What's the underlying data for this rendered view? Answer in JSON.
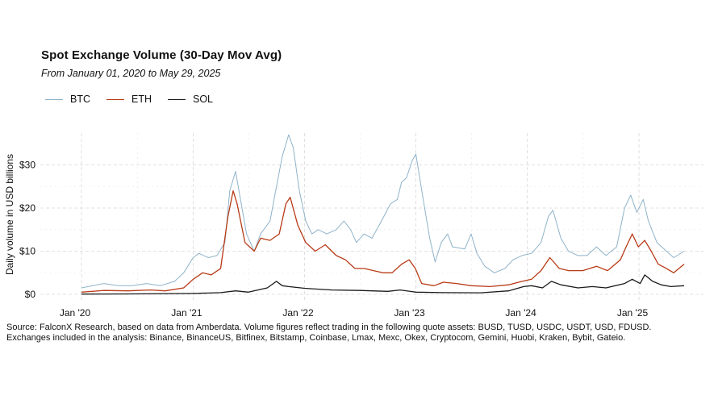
{
  "chart_data": {
    "type": "line",
    "title": "Spot Exchange Volume (30-Day Mov Avg)",
    "subtitle": "From January 01, 2020 to May 29, 2025",
    "ylabel": "Daily volume in USD billions",
    "xlabel": "",
    "x_range": [
      "2020-01-01",
      "2025-05-29"
    ],
    "ylim": [
      0,
      37
    ],
    "y_ticks": [
      0,
      10,
      20,
      30
    ],
    "y_tick_labels": [
      "$0",
      "$10",
      "$20",
      "$30"
    ],
    "x_ticks": [
      "2020-01-01",
      "2021-01-01",
      "2022-01-01",
      "2023-01-01",
      "2024-01-01",
      "2025-01-01"
    ],
    "x_tick_labels": [
      "Jan '20",
      "Jan '21",
      "Jan '22",
      "Jan '23",
      "Jan '24",
      "Jan '25"
    ],
    "grid": true,
    "legend_position": "top-left",
    "series": [
      {
        "name": "BTC",
        "color": "#8fb3c9",
        "points": [
          [
            "2020-01-01",
            1.5
          ],
          [
            "2020-03-15",
            2.5
          ],
          [
            "2020-05-01",
            2.0
          ],
          [
            "2020-06-15",
            2.0
          ],
          [
            "2020-08-01",
            2.5
          ],
          [
            "2020-09-15",
            2.0
          ],
          [
            "2020-11-01",
            3.0
          ],
          [
            "2020-12-01",
            5.0
          ],
          [
            "2021-01-01",
            8.5
          ],
          [
            "2021-01-20",
            9.5
          ],
          [
            "2021-02-20",
            8.5
          ],
          [
            "2021-03-20",
            9.0
          ],
          [
            "2021-04-15",
            12.0
          ],
          [
            "2021-05-01",
            24.0
          ],
          [
            "2021-05-20",
            28.5
          ],
          [
            "2021-06-05",
            22.0
          ],
          [
            "2021-06-25",
            14.0
          ],
          [
            "2021-07-20",
            10.0
          ],
          [
            "2021-08-10",
            14.0
          ],
          [
            "2021-09-10",
            17.0
          ],
          [
            "2021-10-01",
            25.0
          ],
          [
            "2021-10-20",
            32.0
          ],
          [
            "2021-11-10",
            37.0
          ],
          [
            "2021-11-25",
            34.0
          ],
          [
            "2021-12-15",
            24.0
          ],
          [
            "2022-01-05",
            17.0
          ],
          [
            "2022-01-25",
            14.0
          ],
          [
            "2022-02-15",
            15.0
          ],
          [
            "2022-03-15",
            14.0
          ],
          [
            "2022-04-15",
            15.0
          ],
          [
            "2022-05-10",
            17.0
          ],
          [
            "2022-06-01",
            15.0
          ],
          [
            "2022-06-20",
            12.0
          ],
          [
            "2022-07-15",
            14.0
          ],
          [
            "2022-08-10",
            13.0
          ],
          [
            "2022-09-10",
            17.0
          ],
          [
            "2022-10-10",
            21.0
          ],
          [
            "2022-11-01",
            22.0
          ],
          [
            "2022-11-15",
            26.0
          ],
          [
            "2022-12-01",
            27.0
          ],
          [
            "2022-12-20",
            31.0
          ],
          [
            "2023-01-01",
            32.5
          ],
          [
            "2023-01-25",
            22.0
          ],
          [
            "2023-02-15",
            13.0
          ],
          [
            "2023-03-05",
            7.5
          ],
          [
            "2023-03-25",
            12.0
          ],
          [
            "2023-04-15",
            14.0
          ],
          [
            "2023-05-01",
            11.0
          ],
          [
            "2023-06-10",
            10.5
          ],
          [
            "2023-07-01",
            14.0
          ],
          [
            "2023-07-20",
            9.5
          ],
          [
            "2023-08-15",
            6.5
          ],
          [
            "2023-09-15",
            5.0
          ],
          [
            "2023-10-20",
            6.0
          ],
          [
            "2023-11-15",
            8.0
          ],
          [
            "2023-12-15",
            9.0
          ],
          [
            "2024-01-15",
            9.5
          ],
          [
            "2024-02-15",
            12.0
          ],
          [
            "2024-03-10",
            18.0
          ],
          [
            "2024-03-25",
            19.5
          ],
          [
            "2024-04-20",
            13.0
          ],
          [
            "2024-05-15",
            10.0
          ],
          [
            "2024-06-15",
            9.0
          ],
          [
            "2024-07-15",
            9.0
          ],
          [
            "2024-08-15",
            11.0
          ],
          [
            "2024-09-15",
            9.0
          ],
          [
            "2024-10-20",
            11.0
          ],
          [
            "2024-11-15",
            20.0
          ],
          [
            "2024-12-05",
            23.0
          ],
          [
            "2024-12-25",
            19.0
          ],
          [
            "2025-01-15",
            22.0
          ],
          [
            "2025-02-01",
            17.0
          ],
          [
            "2025-03-01",
            12.0
          ],
          [
            "2025-04-01",
            10.0
          ],
          [
            "2025-04-25",
            8.5
          ],
          [
            "2025-05-29",
            10.0
          ]
        ]
      },
      {
        "name": "ETH",
        "color": "#b83a16",
        "points": [
          [
            "2020-01-01",
            0.5
          ],
          [
            "2020-03-15",
            0.9
          ],
          [
            "2020-06-01",
            0.8
          ],
          [
            "2020-08-15",
            1.0
          ],
          [
            "2020-10-01",
            0.8
          ],
          [
            "2020-12-01",
            1.5
          ],
          [
            "2021-01-01",
            3.5
          ],
          [
            "2021-02-01",
            5.0
          ],
          [
            "2021-03-01",
            4.5
          ],
          [
            "2021-04-01",
            6.0
          ],
          [
            "2021-04-25",
            18.0
          ],
          [
            "2021-05-12",
            24.0
          ],
          [
            "2021-05-25",
            21.0
          ],
          [
            "2021-06-20",
            12.0
          ],
          [
            "2021-07-20",
            10.0
          ],
          [
            "2021-08-10",
            13.0
          ],
          [
            "2021-09-10",
            12.5
          ],
          [
            "2021-10-10",
            14.0
          ],
          [
            "2021-11-01",
            21.0
          ],
          [
            "2021-11-15",
            22.5
          ],
          [
            "2021-12-10",
            16.0
          ],
          [
            "2022-01-05",
            12.0
          ],
          [
            "2022-02-05",
            10.0
          ],
          [
            "2022-03-10",
            11.5
          ],
          [
            "2022-04-15",
            9.0
          ],
          [
            "2022-05-15",
            8.0
          ],
          [
            "2022-06-15",
            6.0
          ],
          [
            "2022-07-15",
            6.0
          ],
          [
            "2022-08-15",
            5.5
          ],
          [
            "2022-09-15",
            5.0
          ],
          [
            "2022-10-15",
            5.0
          ],
          [
            "2022-11-15",
            7.0
          ],
          [
            "2022-12-10",
            8.0
          ],
          [
            "2022-12-30",
            6.0
          ],
          [
            "2023-01-20",
            2.5
          ],
          [
            "2023-03-01",
            2.0
          ],
          [
            "2023-04-01",
            2.8
          ],
          [
            "2023-05-15",
            2.5
          ],
          [
            "2023-07-01",
            2.0
          ],
          [
            "2023-09-01",
            1.8
          ],
          [
            "2023-11-01",
            2.2
          ],
          [
            "2023-12-15",
            3.0
          ],
          [
            "2024-01-15",
            3.5
          ],
          [
            "2024-02-15",
            5.5
          ],
          [
            "2024-03-15",
            8.5
          ],
          [
            "2024-04-15",
            6.0
          ],
          [
            "2024-05-15",
            5.5
          ],
          [
            "2024-07-01",
            5.5
          ],
          [
            "2024-08-15",
            6.5
          ],
          [
            "2024-09-20",
            5.5
          ],
          [
            "2024-11-01",
            8.0
          ],
          [
            "2024-11-20",
            11.0
          ],
          [
            "2024-12-10",
            14.0
          ],
          [
            "2024-12-30",
            11.0
          ],
          [
            "2025-01-20",
            12.5
          ],
          [
            "2025-02-10",
            10.0
          ],
          [
            "2025-03-05",
            7.0
          ],
          [
            "2025-04-01",
            6.0
          ],
          [
            "2025-04-25",
            5.0
          ],
          [
            "2025-05-29",
            7.0
          ]
        ]
      },
      {
        "name": "SOL",
        "color": "#1a1a1a",
        "points": [
          [
            "2020-01-01",
            0.05
          ],
          [
            "2020-06-01",
            0.1
          ],
          [
            "2021-01-01",
            0.2
          ],
          [
            "2021-04-01",
            0.4
          ],
          [
            "2021-05-20",
            0.8
          ],
          [
            "2021-07-01",
            0.5
          ],
          [
            "2021-09-01",
            1.5
          ],
          [
            "2021-10-01",
            3.0
          ],
          [
            "2021-10-20",
            2.0
          ],
          [
            "2021-11-10",
            1.8
          ],
          [
            "2022-01-01",
            1.4
          ],
          [
            "2022-04-01",
            1.0
          ],
          [
            "2022-07-01",
            0.9
          ],
          [
            "2022-10-01",
            0.7
          ],
          [
            "2022-11-10",
            1.0
          ],
          [
            "2023-01-01",
            0.5
          ],
          [
            "2023-04-01",
            0.4
          ],
          [
            "2023-08-01",
            0.35
          ],
          [
            "2023-11-01",
            0.8
          ],
          [
            "2023-12-20",
            1.8
          ],
          [
            "2024-01-15",
            2.0
          ],
          [
            "2024-02-20",
            1.5
          ],
          [
            "2024-03-20",
            3.0
          ],
          [
            "2024-04-20",
            2.2
          ],
          [
            "2024-06-15",
            1.5
          ],
          [
            "2024-08-01",
            1.8
          ],
          [
            "2024-09-15",
            1.5
          ],
          [
            "2024-11-15",
            2.5
          ],
          [
            "2024-12-10",
            3.5
          ],
          [
            "2025-01-05",
            2.5
          ],
          [
            "2025-01-20",
            4.5
          ],
          [
            "2025-02-15",
            3.0
          ],
          [
            "2025-03-15",
            2.2
          ],
          [
            "2025-04-15",
            1.8
          ],
          [
            "2025-05-29",
            2.0
          ]
        ]
      }
    ]
  },
  "source_note": "Source: FalconX Research, based on data from Amberdata. Volume figures reflect trading in the following quote assets: BUSD, TUSD, USDC, USDT, USD, FDUSD. Exchanges included in the analysis: Binance, BinanceUS, Bitfinex, Bitstamp, Coinbase, Lmax, Mexc, Okex, Cryptocom, Gemini, Huobi, Kraken, Bybit, Gateio."
}
